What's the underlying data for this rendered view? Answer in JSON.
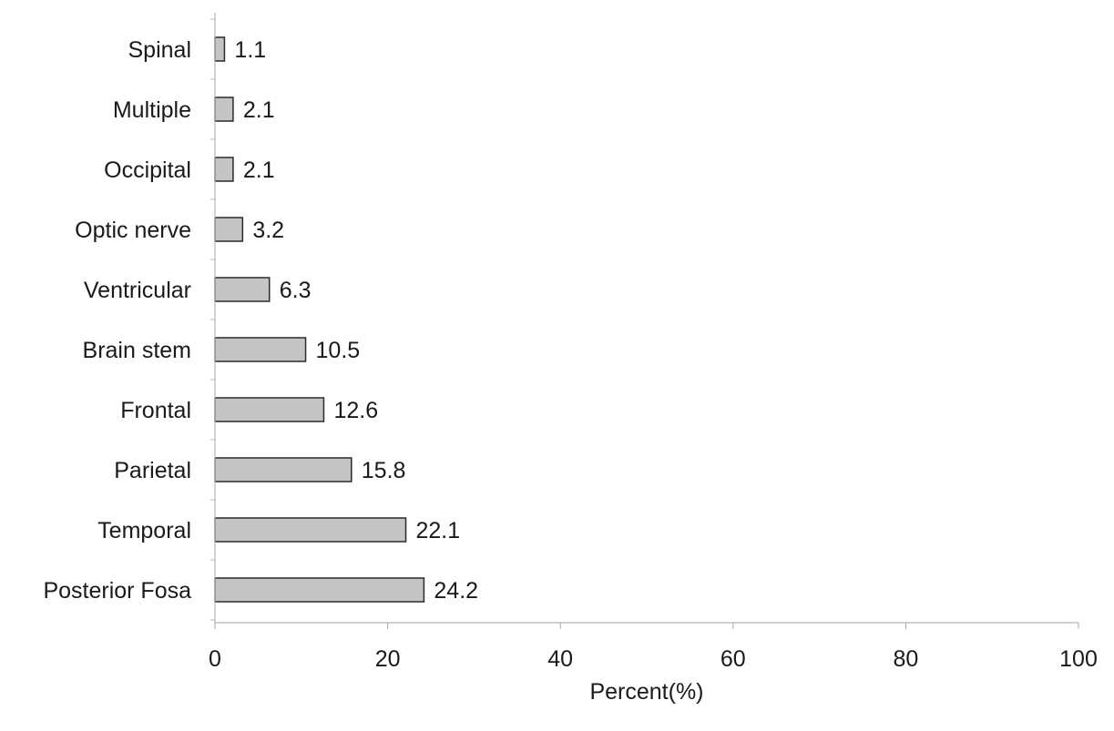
{
  "chart_data": {
    "type": "bar",
    "orientation": "horizontal",
    "categories": [
      "Spinal",
      "Multiple",
      "Occipital",
      "Optic nerve",
      "Ventricular",
      "Brain stem",
      "Frontal",
      "Parietal",
      "Temporal",
      "Posterior Fosa"
    ],
    "values": [
      1.1,
      2.1,
      2.1,
      3.2,
      6.3,
      10.5,
      12.6,
      15.8,
      22.1,
      24.2
    ],
    "data_labels": [
      "1.1",
      "2.1",
      "2.1",
      "3.2",
      "6.3",
      "10.5",
      "12.6",
      "15.8",
      "22.1",
      "24.2"
    ],
    "title": "",
    "xlabel": "Percent(%)",
    "ylabel": "",
    "xlim": [
      0,
      100
    ],
    "x_ticks": [
      0,
      20,
      40,
      60,
      80,
      100
    ],
    "grid": false,
    "legend": "none",
    "colors": {
      "bar_fill": "#c4c4c4",
      "bar_stroke": "#2a2a2a",
      "axis": "#b5b5b5",
      "text": "#1a1a1a"
    }
  }
}
